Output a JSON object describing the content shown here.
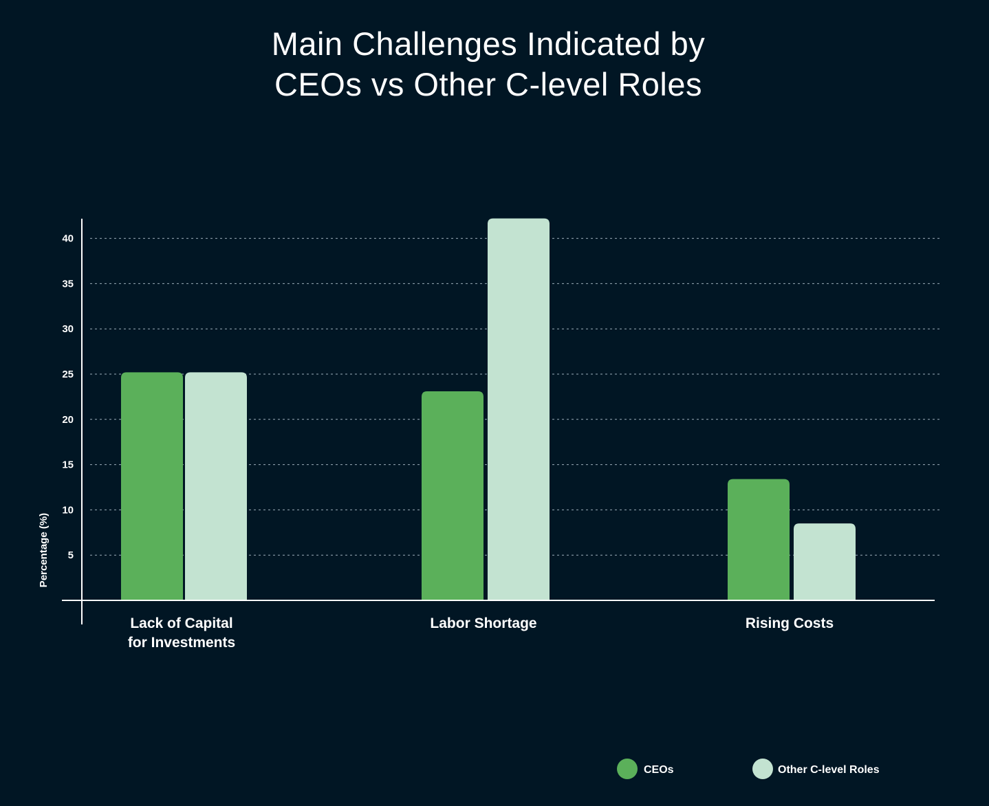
{
  "chart_data": {
    "type": "bar",
    "title": [
      "Main Challenges Indicated by",
      "CEOs vs Other C-level Roles"
    ],
    "categories": [
      [
        "Lack of Capital",
        "for Investments"
      ],
      [
        "Labor Shortage"
      ],
      [
        "Rising Costs"
      ]
    ],
    "series": [
      {
        "name": "CEOs",
        "color": "#5bb05a",
        "values": [
          25.2,
          23.1,
          13.4
        ]
      },
      {
        "name": "Other C-level Roles",
        "color": "#c3e3d1",
        "values": [
          25.2,
          42.2,
          8.5
        ]
      }
    ],
    "ylabel": "Percentage (%)",
    "xlabel": "",
    "yticks": [
      5,
      10,
      15,
      20,
      25,
      30,
      35,
      40
    ],
    "ylim": [
      0,
      42.2
    ],
    "grid": true,
    "legend": "bottom-right"
  }
}
